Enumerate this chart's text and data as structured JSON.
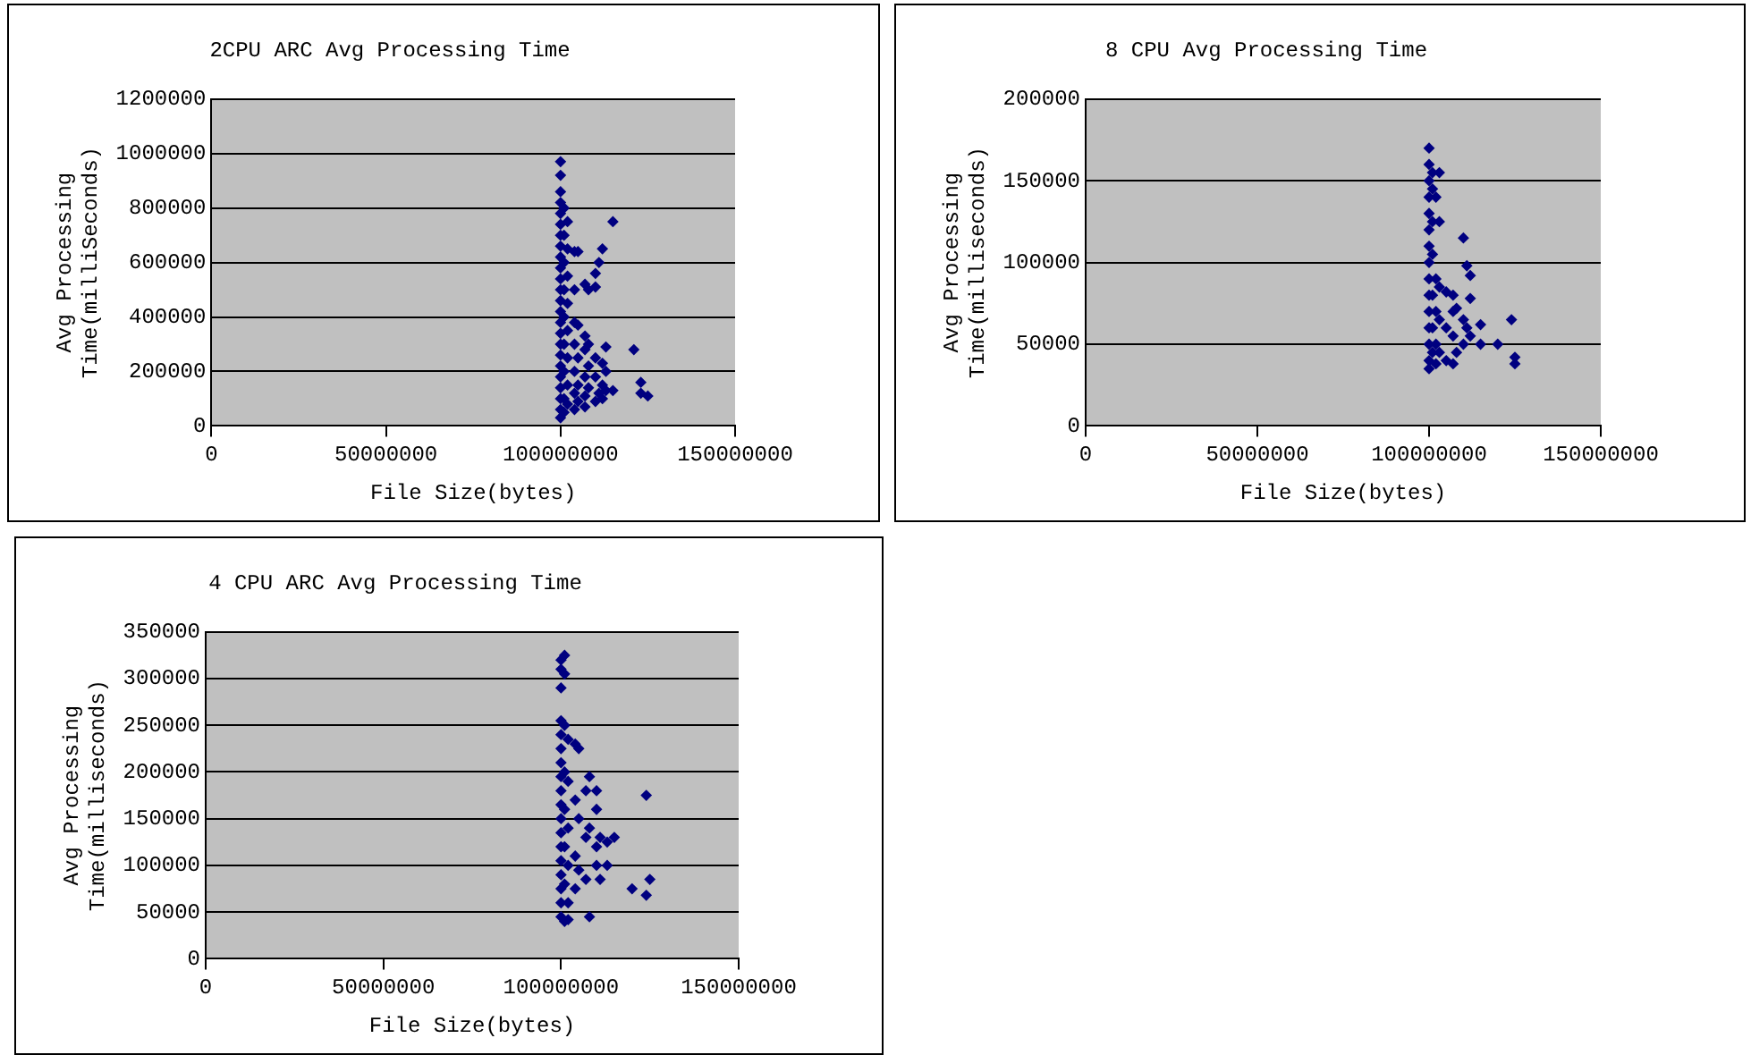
{
  "chart_data": [
    {
      "type": "scatter",
      "title": "2CPU ARC Avg Processing Time",
      "xlabel": "File Size(bytes)",
      "ylabel": "Avg Processing Time(milliSeconds)",
      "xlim": [
        0,
        150000000
      ],
      "xticks": [
        0,
        50000000,
        100000000,
        150000000
      ],
      "ylim": [
        0,
        1200000
      ],
      "yticks": [
        0,
        200000,
        400000,
        600000,
        800000,
        1000000,
        1200000
      ],
      "grid": "y",
      "marker": "diamond",
      "series": [
        {
          "color": "#000080",
          "x": [
            100000000,
            100000000,
            100000000,
            100000000,
            100000000,
            100000000,
            100000000,
            100000000,
            100000000,
            100000000,
            100000000,
            100000000,
            100000000,
            100000000,
            100000000,
            100000000,
            100000000,
            100000000,
            100000000,
            100000000,
            100000000,
            100000000,
            100000000,
            100000000,
            101000000,
            101000000,
            101000000,
            101000000,
            101000000,
            101000000,
            101000000,
            101000000,
            101000000,
            102000000,
            102000000,
            102000000,
            102000000,
            102000000,
            102000000,
            102000000,
            102000000,
            104000000,
            104000000,
            104000000,
            104000000,
            104000000,
            104000000,
            104000000,
            105000000,
            105000000,
            105000000,
            105000000,
            105000000,
            107000000,
            107000000,
            107000000,
            107000000,
            107000000,
            107000000,
            108000000,
            108000000,
            108000000,
            108000000,
            110000000,
            110000000,
            110000000,
            110000000,
            110000000,
            111000000,
            111000000,
            112000000,
            112000000,
            112000000,
            112000000,
            113000000,
            113000000,
            113000000,
            115000000,
            115000000,
            121000000,
            123000000,
            123000000,
            125000000
          ],
          "values": [
            970000,
            920000,
            860000,
            820000,
            780000,
            740000,
            700000,
            660000,
            620000,
            580000,
            540000,
            500000,
            460000,
            420000,
            380000,
            340000,
            300000,
            260000,
            220000,
            180000,
            140000,
            100000,
            60000,
            30000,
            800000,
            700000,
            600000,
            500000,
            400000,
            300000,
            200000,
            100000,
            50000,
            750000,
            650000,
            550000,
            450000,
            350000,
            250000,
            150000,
            80000,
            640000,
            500000,
            380000,
            300000,
            200000,
            120000,
            60000,
            640000,
            370000,
            250000,
            150000,
            90000,
            520000,
            330000,
            280000,
            180000,
            110000,
            70000,
            500000,
            300000,
            220000,
            140000,
            510000,
            560000,
            250000,
            180000,
            90000,
            600000,
            120000,
            650000,
            230000,
            150000,
            100000,
            290000,
            200000,
            130000,
            750000,
            130000,
            280000,
            160000,
            120000,
            110000
          ]
        }
      ]
    },
    {
      "type": "scatter",
      "title": "8 CPU Avg Processing Time",
      "xlabel": "File Size(bytes)",
      "ylabel": "Avg Processing Time(milliseconds)",
      "xlim": [
        0,
        150000000
      ],
      "xticks": [
        0,
        50000000,
        100000000,
        150000000
      ],
      "ylim": [
        0,
        200000
      ],
      "yticks": [
        0,
        50000,
        100000,
        150000,
        200000
      ],
      "grid": "y",
      "marker": "diamond",
      "series": [
        {
          "color": "#000080",
          "x": [
            100000000,
            100000000,
            100000000,
            100000000,
            100000000,
            100000000,
            100000000,
            100000000,
            100000000,
            100000000,
            100000000,
            100000000,
            100000000,
            100000000,
            100000000,
            101000000,
            101000000,
            101000000,
            101000000,
            101000000,
            101000000,
            101000000,
            102000000,
            102000000,
            102000000,
            102000000,
            102000000,
            103000000,
            103000000,
            103000000,
            103000000,
            103000000,
            105000000,
            105000000,
            105000000,
            107000000,
            107000000,
            107000000,
            107000000,
            108000000,
            108000000,
            110000000,
            110000000,
            110000000,
            111000000,
            111000000,
            112000000,
            112000000,
            112000000,
            115000000,
            115000000,
            120000000,
            124000000,
            125000000,
            125000000
          ],
          "values": [
            170000,
            160000,
            150000,
            140000,
            130000,
            120000,
            110000,
            100000,
            90000,
            80000,
            70000,
            60000,
            50000,
            40000,
            35000,
            155000,
            145000,
            125000,
            105000,
            80000,
            60000,
            45000,
            140000,
            90000,
            70000,
            50000,
            38000,
            155000,
            125000,
            85000,
            65000,
            45000,
            82000,
            60000,
            40000,
            80000,
            70000,
            55000,
            38000,
            72000,
            45000,
            115000,
            65000,
            50000,
            98000,
            60000,
            92000,
            78000,
            55000,
            62000,
            50000,
            50000,
            65000,
            42000,
            38000
          ]
        }
      ]
    },
    {
      "type": "scatter",
      "title": "4 CPU ARC Avg Processing Time",
      "xlabel": "File Size(bytes)",
      "ylabel": "Avg Processing Time(milliseconds)",
      "xlim": [
        0,
        150000000
      ],
      "xticks": [
        0,
        50000000,
        100000000,
        150000000
      ],
      "ylim": [
        0,
        350000
      ],
      "yticks": [
        0,
        50000,
        100000,
        150000,
        200000,
        250000,
        300000,
        350000
      ],
      "grid": "y",
      "marker": "diamond",
      "series": [
        {
          "color": "#000080",
          "x": [
            100000000,
            100000000,
            100000000,
            100000000,
            100000000,
            100000000,
            100000000,
            100000000,
            100000000,
            100000000,
            100000000,
            100000000,
            100000000,
            100000000,
            100000000,
            100000000,
            100000000,
            100000000,
            101000000,
            101000000,
            101000000,
            101000000,
            101000000,
            101000000,
            101000000,
            101000000,
            102000000,
            102000000,
            102000000,
            102000000,
            102000000,
            102000000,
            104000000,
            104000000,
            104000000,
            104000000,
            105000000,
            105000000,
            105000000,
            107000000,
            107000000,
            107000000,
            108000000,
            108000000,
            108000000,
            110000000,
            110000000,
            110000000,
            110000000,
            111000000,
            111000000,
            113000000,
            113000000,
            115000000,
            120000000,
            124000000,
            124000000,
            125000000
          ],
          "values": [
            320000,
            310000,
            290000,
            255000,
            240000,
            225000,
            210000,
            195000,
            180000,
            165000,
            150000,
            135000,
            120000,
            105000,
            90000,
            75000,
            60000,
            45000,
            325000,
            305000,
            250000,
            200000,
            160000,
            120000,
            80000,
            40000,
            235000,
            190000,
            140000,
            100000,
            60000,
            42000,
            230000,
            170000,
            110000,
            75000,
            225000,
            150000,
            95000,
            180000,
            130000,
            85000,
            195000,
            140000,
            45000,
            160000,
            120000,
            100000,
            180000,
            130000,
            85000,
            125000,
            100000,
            130000,
            75000,
            175000,
            68000,
            85000
          ]
        }
      ]
    }
  ]
}
